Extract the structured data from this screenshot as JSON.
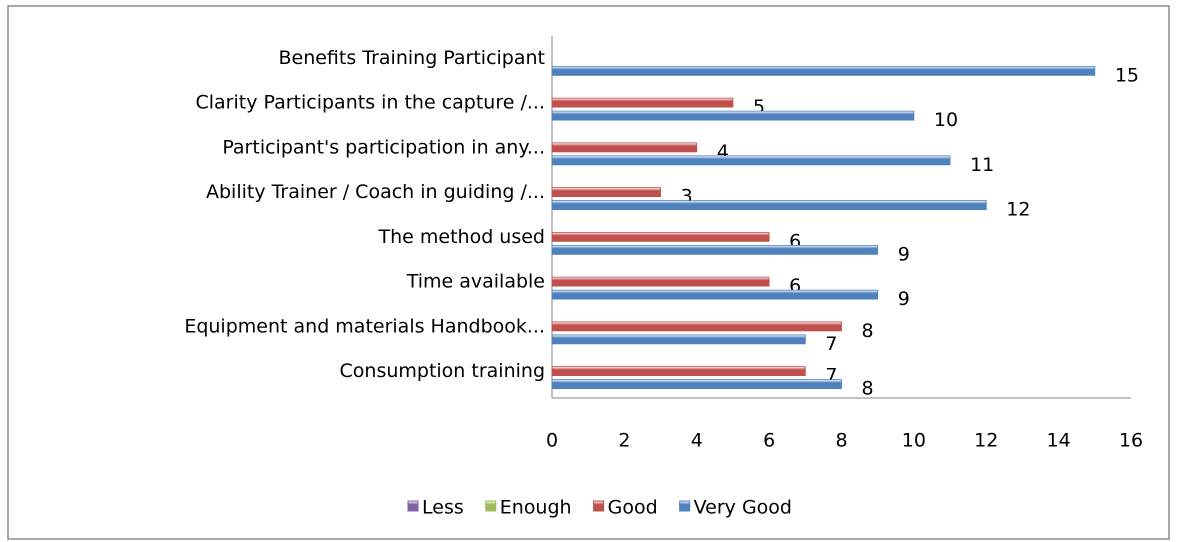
{
  "chart_data": {
    "type": "hbar",
    "categories": [
      "Benefits Training Participant",
      "Clarity Participants in the capture /...",
      "Participant's participation in any...",
      "Ability Trainer / Coach in guiding /...",
      "The method used",
      "Time available",
      "Equipment and materials Handbook...",
      "Consumption training"
    ],
    "series": [
      {
        "name": "Less",
        "color": "#8064a2",
        "values": [
          null,
          null,
          null,
          null,
          null,
          null,
          null,
          null
        ]
      },
      {
        "name": "Enough",
        "color": "#9bbb59",
        "values": [
          null,
          null,
          null,
          null,
          null,
          null,
          null,
          null
        ]
      },
      {
        "name": "Good",
        "color": "#c0504d",
        "values": [
          null,
          5,
          4,
          3,
          6,
          6,
          8,
          7
        ]
      },
      {
        "name": "Very Good",
        "color": "#4f81bd",
        "values": [
          15,
          10,
          11,
          12,
          9,
          9,
          7,
          8
        ]
      }
    ],
    "xlim": [
      0,
      16
    ],
    "xticks": [
      0,
      2,
      4,
      6,
      8,
      10,
      12,
      14,
      16
    ],
    "grid": false,
    "legend": "bottom"
  }
}
